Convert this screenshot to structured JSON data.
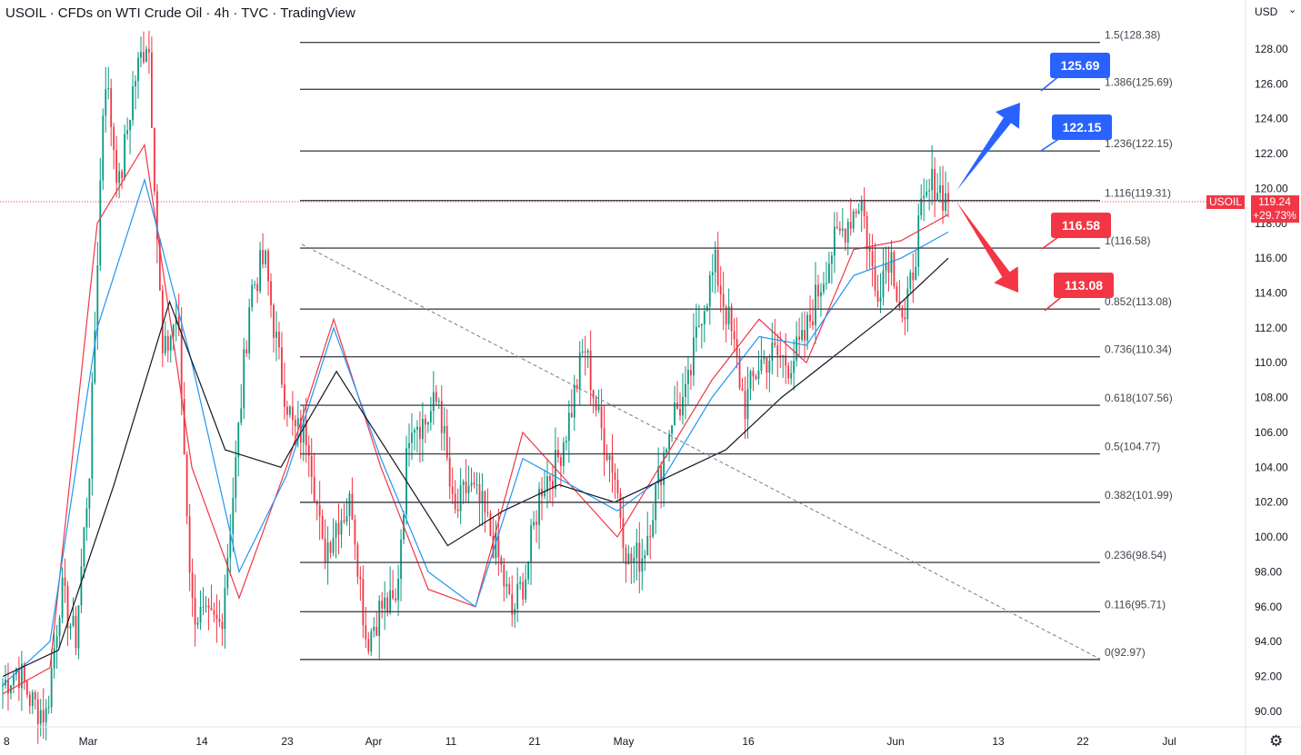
{
  "header": {
    "title": "USOIL · CFDs on WTI Crude Oil · 4h · TVC · TradingView",
    "currency": "USD"
  },
  "price_label": {
    "symbol": "USOIL",
    "price": "119.24",
    "change": "+29.73%"
  },
  "colors": {
    "up": "#089981",
    "down": "#f23645",
    "ema_fast": "#f23645",
    "ema_mid": "#2196f3",
    "ema_slow": "#131722",
    "callout_blue": "#2962ff",
    "callout_red": "#f23645",
    "fib_line": "#434651",
    "grid": "#f0f3fa"
  },
  "chart_data": {
    "type": "candlestick",
    "title": "USOIL · CFDs on WTI Crude Oil · 4h · TVC · TradingView",
    "ylim": [
      89,
      130
    ],
    "yticks": [
      90,
      92,
      94,
      96,
      98,
      100,
      102,
      104,
      106,
      108,
      110,
      112,
      114,
      116,
      118,
      120,
      122,
      124,
      126,
      128
    ],
    "xlabels": [
      "8",
      "Mar",
      "14",
      "23",
      "Apr",
      "11",
      "21",
      "May",
      "16",
      "Jun",
      "13",
      "22",
      "Jul"
    ],
    "fib_levels": [
      {
        "label": "1.5(128.38)",
        "value": 128.38
      },
      {
        "label": "1.386(125.69)",
        "value": 125.69
      },
      {
        "label": "1.236(122.15)",
        "value": 122.15
      },
      {
        "label": "1.116(119.31)",
        "value": 119.31
      },
      {
        "label": "1(116.58)",
        "value": 116.58
      },
      {
        "label": "0.852(113.08)",
        "value": 113.08
      },
      {
        "label": "0.736(110.34)",
        "value": 110.34
      },
      {
        "label": "0.618(107.56)",
        "value": 107.56
      },
      {
        "label": "0.5(104.77)",
        "value": 104.77
      },
      {
        "label": "0.382(101.99)",
        "value": 101.99
      },
      {
        "label": "0.236(98.54)",
        "value": 98.54
      },
      {
        "label": "0.116(95.71)",
        "value": 95.71
      },
      {
        "label": "0(92.97)",
        "value": 92.97
      }
    ],
    "targets": [
      {
        "label": "125.69",
        "value": 125.69,
        "direction": "up"
      },
      {
        "label": "122.15",
        "value": 122.15,
        "direction": "up"
      },
      {
        "label": "116.58",
        "value": 116.58,
        "direction": "down"
      },
      {
        "label": "113.08",
        "value": 113.08,
        "direction": "down"
      }
    ],
    "last_price": 119.24,
    "trendline": [
      [
        116.8,
        "Mar 23"
      ],
      [
        93.0,
        "Jun 22"
      ]
    ],
    "anchors": [
      [
        91.5,
        92.5,
        90.5
      ],
      [
        89.8,
        97.0,
        94.0
      ],
      [
        104.5,
        127.0,
        120.0
      ],
      [
        126.0,
        129.0,
        110.0
      ],
      [
        113.0,
        96.0,
        95.0
      ],
      [
        95.0,
        104.0,
        114.0
      ],
      [
        116.0,
        110.0,
        106.0
      ],
      [
        106.0,
        99.0,
        101.0
      ],
      [
        102.0,
        94.0,
        96.0
      ],
      [
        96.0,
        107.0,
        106.5
      ],
      [
        108.0,
        101.0,
        103.0
      ],
      [
        101.5,
        99.0,
        95.5
      ],
      [
        98.0,
        103.0,
        104.0
      ],
      [
        107.0,
        111.0,
        106.5
      ],
      [
        104.0,
        98.5,
        99.0
      ],
      [
        103.0,
        107.0,
        108.0
      ],
      [
        113.0,
        115.5,
        112.0
      ],
      [
        107.5,
        110.0,
        110.5
      ],
      [
        110.0,
        111.0,
        114.0
      ],
      [
        116.5,
        118.0,
        119.5
      ],
      [
        114.0,
        116.5,
        112.0
      ],
      [
        118.0,
        120.5,
        119.2
      ]
    ],
    "ema_fast_points": [
      91.0,
      92.5,
      118.0,
      122.5,
      104.0,
      96.5,
      104.0,
      112.5,
      104.0,
      97.0,
      96.0,
      106.0,
      103.0,
      100.0,
      104.5,
      109.0,
      112.5,
      110.0,
      116.5,
      117.0,
      118.5
    ],
    "ema_mid_points": [
      91.5,
      94.0,
      112.0,
      120.5,
      110.0,
      98.0,
      103.5,
      112.0,
      104.5,
      98.0,
      96.0,
      104.5,
      103.0,
      101.5,
      103.5,
      108.0,
      111.5,
      111.0,
      115.0,
      116.0,
      117.5
    ],
    "ema_slow_points": [
      92.0,
      93.5,
      103.0,
      113.5,
      105.0,
      104.0,
      109.5,
      104.5,
      99.5,
      101.5,
      103.0,
      102.0,
      103.5,
      105.0,
      108.0,
      110.5,
      113.0,
      116.0
    ]
  }
}
